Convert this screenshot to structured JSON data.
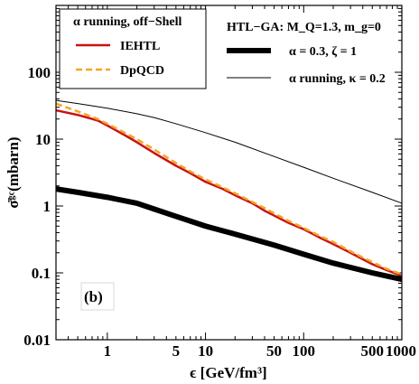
{
  "chart_data": {
    "type": "line",
    "title": "",
    "xlabel": "ϵ [GeV/fm³]",
    "ylabel": "σ̄ᵍᶜ(mbarn)",
    "xscale": "log",
    "yscale": "log",
    "xlim": [
      0.3,
      1000
    ],
    "ylim": [
      0.01,
      1000
    ],
    "x_ticks": [
      {
        "value": 1,
        "label": "1"
      },
      {
        "value": 5,
        "label": "5"
      },
      {
        "value": 10,
        "label": "10"
      },
      {
        "value": 50,
        "label": "50"
      },
      {
        "value": 100,
        "label": "100"
      },
      {
        "value": 500,
        "label": "500"
      },
      {
        "value": 1000,
        "label": "1000"
      }
    ],
    "y_ticks": [
      {
        "value": 0.01,
        "label": "0.01"
      },
      {
        "value": 0.1,
        "label": "0.1"
      },
      {
        "value": 1,
        "label": "1"
      },
      {
        "value": 10,
        "label": "10"
      },
      {
        "value": 100,
        "label": "100"
      }
    ],
    "panel_label": "(b)",
    "legend_left": {
      "placement": "top-left",
      "title": "α running, off−Shell",
      "entries": [
        "IEHTL",
        "DpQCD"
      ]
    },
    "legend_right": {
      "placement": "top-right",
      "title": "HTL−GA: M_Q=1.3, m_g=0",
      "entries": [
        "α = 0.3,  ζ = 1",
        "α running, κ = 0.2"
      ]
    },
    "series": [
      {
        "name": "IEHTL",
        "color": "#cc1111",
        "style": "solid",
        "x": [
          0.3,
          0.5,
          0.8,
          1,
          1.5,
          2,
          3,
          5,
          7,
          10,
          15,
          20,
          30,
          40,
          50,
          70,
          100,
          150,
          200,
          300,
          400,
          500,
          700,
          1000
        ],
        "y": [
          27,
          23,
          19,
          16,
          11.5,
          9,
          6.2,
          4,
          3.1,
          2.3,
          1.8,
          1.45,
          1.1,
          0.85,
          0.72,
          0.56,
          0.45,
          0.33,
          0.27,
          0.2,
          0.16,
          0.135,
          0.11,
          0.09
        ]
      },
      {
        "name": "DpQCD",
        "color": "#f5a623",
        "style": "dashed",
        "x": [
          0.3,
          0.5,
          0.8,
          1,
          1.5,
          2,
          3,
          5,
          7,
          10,
          15,
          20,
          30,
          40,
          50,
          70,
          100,
          150,
          200,
          300,
          400,
          500,
          700,
          1000
        ],
        "y": [
          34,
          26,
          20,
          17,
          12.5,
          10,
          7,
          4.4,
          3.3,
          2.5,
          1.9,
          1.55,
          1.15,
          0.93,
          0.78,
          0.6,
          0.47,
          0.35,
          0.29,
          0.21,
          0.17,
          0.145,
          0.115,
          0.095
        ]
      },
      {
        "name": "α = 0.3,  ζ = 1",
        "color": "#000000",
        "style": "thick",
        "x": [
          0.3,
          0.5,
          1,
          2,
          3,
          5,
          10,
          20,
          50,
          100,
          200,
          500,
          1000
        ],
        "y": [
          1.8,
          1.6,
          1.35,
          1.1,
          0.9,
          0.7,
          0.5,
          0.38,
          0.26,
          0.19,
          0.14,
          0.1,
          0.08
        ]
      },
      {
        "name": "α running, κ = 0.2",
        "color": "#000000",
        "style": "thin",
        "x": [
          0.3,
          0.5,
          1,
          2,
          3,
          5,
          10,
          20,
          50,
          100,
          200,
          500,
          1000
        ],
        "y": [
          38,
          34,
          29,
          24,
          21,
          17,
          12.5,
          9,
          5.5,
          3.8,
          2.6,
          1.6,
          1.1
        ]
      }
    ]
  }
}
